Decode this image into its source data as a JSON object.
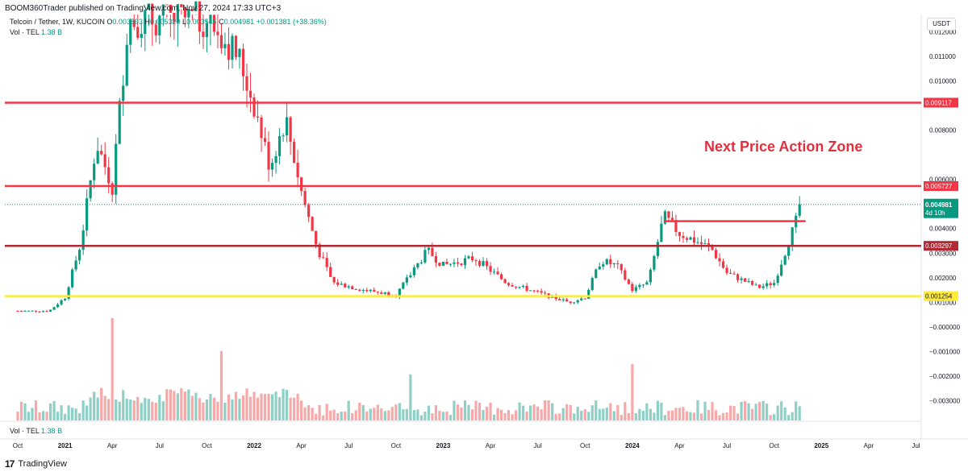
{
  "header": {
    "publisher": "BOOM360Trader published on TradingView.com, Nov 27, 2024 17:33 UTC+3"
  },
  "legend": {
    "symbol": "Telcoin / Tether, 1W, KUCOIN",
    "open_label": "O",
    "open": "0.003593",
    "high_label": "H",
    "high": "0.005320",
    "low_label": "L",
    "low": "0.003545",
    "close_label": "C",
    "close": "0.004981",
    "change": "+0.001381 (+38.36%)",
    "volume_label": "Vol · TEL",
    "volume": "1.38 B"
  },
  "volume_pane": {
    "label": "Vol · TEL",
    "value": "1.38 B"
  },
  "footer": {
    "logo": "17",
    "brand": "TradingView"
  },
  "axis": {
    "currency": "USDT",
    "price_ticks": [
      "0.012000",
      "0.011000",
      "0.010000",
      "0.008000",
      "0.006000",
      "0.004000",
      "0.003000",
      "0.002000",
      "0.001000",
      "−0.000000",
      "−0.001000",
      "−0.002000",
      "−0.003000"
    ],
    "time_ticks": [
      "Oct",
      "2021",
      "Apr",
      "Jul",
      "Oct",
      "2022",
      "Apr",
      "Jul",
      "Oct",
      "2023",
      "Apr",
      "Jul",
      "Oct",
      "2024",
      "Apr",
      "Jul",
      "Oct",
      "2025",
      "Apr",
      "Jul"
    ]
  },
  "annotation": {
    "text": "Next Price Action Zone",
    "color": "#e03040"
  },
  "colors": {
    "up": "#089981",
    "down": "#f23645",
    "vol_up": "#8ed0c5",
    "vol_down": "#f7a9a9",
    "level_red": "#f23645",
    "level_dark_red": "#b22833",
    "level_yellow": "#ffeb3b"
  },
  "chart_data": {
    "type": "candlestick",
    "title": "Telcoin / Tether, 1W, KUCOIN",
    "x_range": [
      "2020-10",
      "2025-08"
    ],
    "y_range": [
      -0.0038,
      0.0127
    ],
    "horizontal_levels": [
      {
        "value": 0.009117,
        "label": "0.009117",
        "color": "#f23645"
      },
      {
        "value": 0.005727,
        "label": "0.005727",
        "color": "#f23645"
      },
      {
        "value": 0.003297,
        "label": "0.003297",
        "color": "#b22833"
      },
      {
        "value": 0.001254,
        "label": "0.001254",
        "color": "#ffeb3b"
      }
    ],
    "last_price": {
      "value": 0.004981,
      "label": "0.004981",
      "countdown": "4d 10h"
    },
    "segment_line": {
      "from_date": "2024-03",
      "to_date": "2024-12",
      "value": 0.0043
    },
    "keypoints": [
      {
        "date": "2020-10",
        "close": 0.00065
      },
      {
        "date": "2020-12",
        "close": 0.00065
      },
      {
        "date": "2021-01",
        "close": 0.0012
      },
      {
        "date": "2021-02",
        "close": 0.0034
      },
      {
        "date": "2021-03",
        "close": 0.0075
      },
      {
        "date": "2021-04",
        "close": 0.0057
      },
      {
        "date": "2021-05",
        "close": 0.0125
      },
      {
        "date": "2021-06",
        "close": 0.0125
      },
      {
        "date": "2021-10",
        "close": 0.0125
      },
      {
        "date": "2021-12",
        "close": 0.011
      },
      {
        "date": "2022-01",
        "close": 0.009
      },
      {
        "date": "2022-02",
        "close": 0.0065
      },
      {
        "date": "2022-03",
        "close": 0.0085
      },
      {
        "date": "2022-04",
        "close": 0.0055
      },
      {
        "date": "2022-05",
        "close": 0.0032
      },
      {
        "date": "2022-06",
        "close": 0.0018
      },
      {
        "date": "2022-08",
        "close": 0.0015
      },
      {
        "date": "2022-10",
        "close": 0.0013
      },
      {
        "date": "2022-12",
        "close": 0.0031
      },
      {
        "date": "2023-01",
        "close": 0.0025
      },
      {
        "date": "2023-03",
        "close": 0.0028
      },
      {
        "date": "2023-05",
        "close": 0.0018
      },
      {
        "date": "2023-07",
        "close": 0.0014
      },
      {
        "date": "2023-09",
        "close": 0.001
      },
      {
        "date": "2023-10",
        "close": 0.0012
      },
      {
        "date": "2023-11",
        "close": 0.0027
      },
      {
        "date": "2023-12",
        "close": 0.0025
      },
      {
        "date": "2024-01",
        "close": 0.0015
      },
      {
        "date": "2024-02",
        "close": 0.0018
      },
      {
        "date": "2024-03",
        "close": 0.0045
      },
      {
        "date": "2024-04",
        "close": 0.0038
      },
      {
        "date": "2024-05",
        "close": 0.0035
      },
      {
        "date": "2024-06",
        "close": 0.0032
      },
      {
        "date": "2024-07",
        "close": 0.0022
      },
      {
        "date": "2024-09",
        "close": 0.0016
      },
      {
        "date": "2024-10",
        "close": 0.0018
      },
      {
        "date": "2024-11",
        "close": 0.0036
      },
      {
        "date": "2024-11-25",
        "close": 0.004981
      }
    ],
    "volume_spikes": [
      {
        "date": "2021-04",
        "volume_rel": 1.0
      },
      {
        "date": "2021-11",
        "volume_rel": 0.68
      },
      {
        "date": "2022-11",
        "volume_rel": 0.45
      },
      {
        "date": "2024-01",
        "volume_rel": 0.55
      }
    ],
    "grid": false
  }
}
